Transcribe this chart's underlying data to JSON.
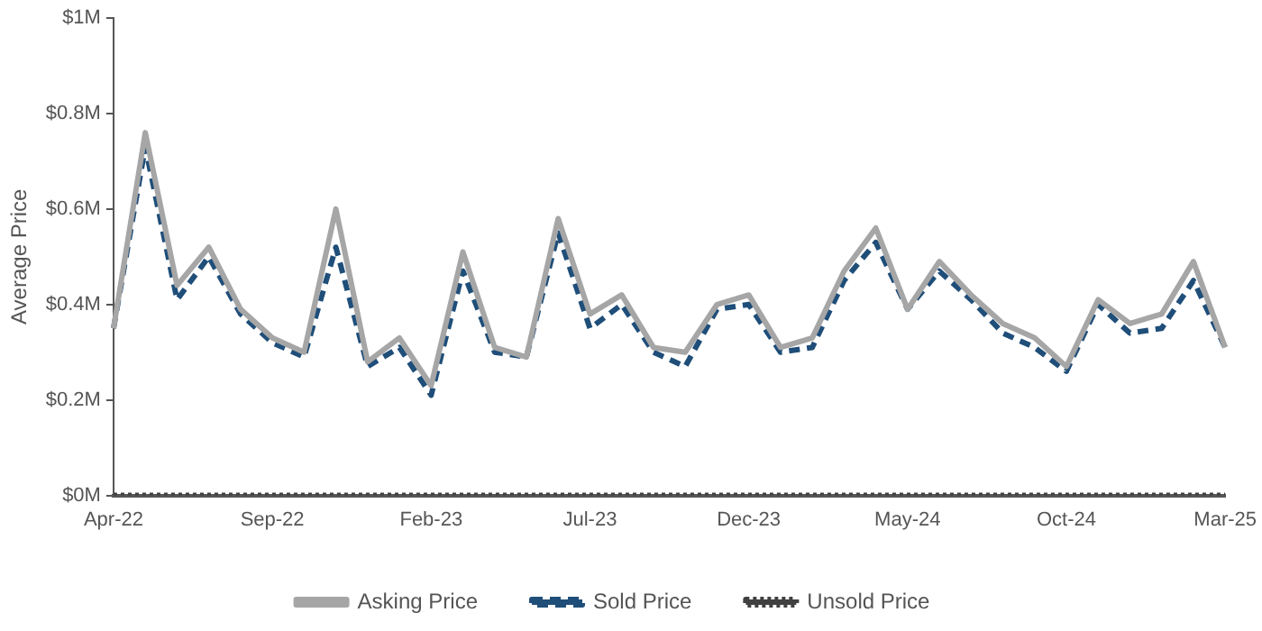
{
  "chart_data": {
    "type": "line",
    "ylabel": "Average Price",
    "categories": [
      "Apr-22",
      null,
      null,
      null,
      null,
      "Sep-22",
      null,
      null,
      null,
      null,
      "Feb-23",
      null,
      null,
      null,
      null,
      "Jul-23",
      null,
      null,
      null,
      null,
      "Dec-23",
      null,
      null,
      null,
      null,
      "May-24",
      null,
      null,
      null,
      null,
      "Oct-24",
      null,
      null,
      null,
      null,
      "Mar-25"
    ],
    "series": [
      {
        "name": "Asking Price",
        "color": "#a6a6a6",
        "line_style": "solid",
        "values": [
          0.35,
          0.76,
          0.44,
          0.52,
          0.39,
          0.33,
          0.3,
          0.6,
          0.28,
          0.33,
          0.23,
          0.51,
          0.31,
          0.29,
          0.58,
          0.38,
          0.42,
          0.31,
          0.3,
          0.4,
          0.42,
          0.31,
          0.33,
          0.47,
          0.56,
          0.39,
          0.49,
          0.42,
          0.36,
          0.33,
          0.27,
          0.41,
          0.36,
          0.38,
          0.49,
          0.31
        ]
      },
      {
        "name": "Sold Price",
        "color": "#1f4e79",
        "line_style": "dashed",
        "values": [
          0.35,
          0.73,
          0.41,
          0.5,
          0.38,
          0.32,
          0.29,
          0.52,
          0.27,
          0.31,
          0.21,
          0.47,
          0.3,
          0.29,
          0.55,
          0.35,
          0.4,
          0.3,
          0.27,
          0.39,
          0.4,
          0.3,
          0.31,
          0.45,
          0.53,
          0.39,
          0.47,
          0.41,
          0.34,
          0.31,
          0.26,
          0.4,
          0.34,
          0.35,
          0.45,
          0.31
        ]
      },
      {
        "name": "Unsold Price",
        "color": "#404040",
        "line_style": "dotted",
        "values": [
          0,
          0,
          0,
          0,
          0,
          0,
          0,
          0,
          0,
          0,
          0,
          0,
          0,
          0,
          0,
          0,
          0,
          0,
          0,
          0,
          0,
          0,
          0,
          0,
          0,
          0,
          0,
          0,
          0,
          0,
          0,
          0,
          0,
          0,
          0,
          0
        ]
      }
    ],
    "ylim": [
      0,
      1
    ],
    "yticks": [
      {
        "value": 0,
        "label": "$0M"
      },
      {
        "value": 0.2,
        "label": "$0.2M"
      },
      {
        "value": 0.4,
        "label": "$0.4M"
      },
      {
        "value": 0.6,
        "label": "$0.6M"
      },
      {
        "value": 0.8,
        "label": "$0.8M"
      },
      {
        "value": 1,
        "label": "$1M"
      }
    ],
    "grid": false,
    "legend": "bottom",
    "marker": "none"
  }
}
